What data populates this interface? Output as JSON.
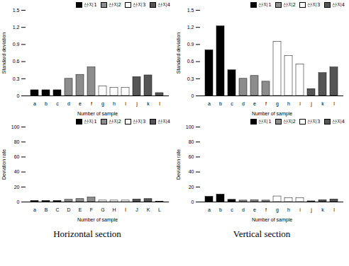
{
  "chart_data": [
    {
      "type": "bar",
      "x_label": "Number of sample",
      "y_label": "Standard deviation",
      "categories": [
        "a",
        "b",
        "c",
        "d",
        "e",
        "f",
        "g",
        "h",
        "i",
        "j",
        "k",
        "l"
      ],
      "series": [
        {
          "name": "산지1",
          "color": "#000000",
          "values": [
            0.1,
            0.1,
            0.1,
            null,
            null,
            null,
            null,
            null,
            null,
            null,
            null,
            null
          ]
        },
        {
          "name": "산지2",
          "color": "#8c8c8c",
          "values": [
            null,
            null,
            null,
            0.3,
            0.37,
            0.5,
            null,
            null,
            null,
            null,
            null,
            null
          ]
        },
        {
          "name": "산지3",
          "color": "#ffffff",
          "values": [
            null,
            null,
            null,
            null,
            null,
            null,
            0.17,
            0.14,
            0.14,
            null,
            null,
            null
          ]
        },
        {
          "name": "산지4",
          "color": "#555555",
          "values": [
            null,
            null,
            null,
            null,
            null,
            null,
            null,
            null,
            null,
            0.33,
            0.36,
            0.05
          ]
        }
      ],
      "ylim": [
        0,
        1.5
      ],
      "yticks": [
        0,
        0.3,
        0.6,
        0.9,
        1.2,
        1.5
      ],
      "legend": "top-right"
    },
    {
      "type": "bar",
      "x_label": "Number of sample",
      "y_label": "Standard deviation",
      "categories": [
        "a",
        "b",
        "c",
        "d",
        "e",
        "f",
        "g",
        "h",
        "i",
        "j",
        "k",
        "l"
      ],
      "series": [
        {
          "name": "산지1",
          "color": "#000000",
          "values": [
            0.8,
            1.22,
            0.45,
            null,
            null,
            null,
            null,
            null,
            null,
            null,
            null,
            null
          ]
        },
        {
          "name": "산지2",
          "color": "#8c8c8c",
          "values": [
            null,
            null,
            null,
            0.3,
            0.35,
            0.25,
            null,
            null,
            null,
            null,
            null,
            null
          ]
        },
        {
          "name": "산지3",
          "color": "#ffffff",
          "values": [
            null,
            null,
            null,
            null,
            null,
            null,
            0.95,
            0.7,
            0.55,
            null,
            null,
            null
          ]
        },
        {
          "name": "산지4",
          "color": "#555555",
          "values": [
            null,
            null,
            null,
            null,
            null,
            null,
            null,
            null,
            null,
            0.12,
            0.4,
            0.5
          ]
        }
      ],
      "ylim": [
        0,
        1.5
      ],
      "yticks": [
        0,
        0.3,
        0.6,
        0.9,
        1.2,
        1.5
      ],
      "legend": "top-right"
    },
    {
      "type": "bar",
      "x_label": "Number of sample",
      "y_label": "Deviation rate",
      "categories": [
        "a",
        "B",
        "C",
        "D",
        "E",
        "F",
        "G",
        "H",
        "I",
        "J",
        "K",
        "L"
      ],
      "series": [
        {
          "name": "산지1",
          "color": "#000000",
          "values": [
            1.5,
            1.5,
            1.5,
            null,
            null,
            null,
            null,
            null,
            null,
            null,
            null,
            null
          ]
        },
        {
          "name": "산지2",
          "color": "#8c8c8c",
          "values": [
            null,
            null,
            null,
            3,
            4,
            6,
            null,
            null,
            null,
            null,
            null,
            null
          ]
        },
        {
          "name": "산지3",
          "color": "#ffffff",
          "values": [
            null,
            null,
            null,
            null,
            null,
            null,
            2,
            2,
            2,
            null,
            null,
            null
          ]
        },
        {
          "name": "산지4",
          "color": "#555555",
          "values": [
            null,
            null,
            null,
            null,
            null,
            null,
            null,
            null,
            null,
            3.5,
            4,
            0.5
          ]
        }
      ],
      "ylim": [
        0,
        100
      ],
      "yticks": [
        0,
        20,
        40,
        60,
        80,
        100
      ],
      "legend": "top-right"
    },
    {
      "type": "bar",
      "x_label": "Number of sample",
      "y_label": "Deviation rate",
      "categories": [
        "a",
        "b",
        "c",
        "d",
        "e",
        "f",
        "g",
        "h",
        "i",
        "j",
        "k",
        "l"
      ],
      "series": [
        {
          "name": "산지1",
          "color": "#000000",
          "values": [
            7,
            10,
            3,
            null,
            null,
            null,
            null,
            null,
            null,
            null,
            null,
            null
          ]
        },
        {
          "name": "산지2",
          "color": "#8c8c8c",
          "values": [
            null,
            null,
            null,
            2,
            2.5,
            2,
            null,
            null,
            null,
            null,
            null,
            null
          ]
        },
        {
          "name": "산지3",
          "color": "#ffffff",
          "values": [
            null,
            null,
            null,
            null,
            null,
            null,
            7.5,
            5,
            5,
            null,
            null,
            null
          ]
        },
        {
          "name": "산지4",
          "color": "#555555",
          "values": [
            null,
            null,
            null,
            null,
            null,
            null,
            null,
            null,
            null,
            1,
            2.5,
            3.5
          ]
        }
      ],
      "ylim": [
        0,
        100
      ],
      "yticks": [
        0,
        20,
        40,
        60,
        80,
        100
      ],
      "legend": "top-right"
    }
  ],
  "captions": [
    "Horizontal section",
    "Vertical section"
  ]
}
